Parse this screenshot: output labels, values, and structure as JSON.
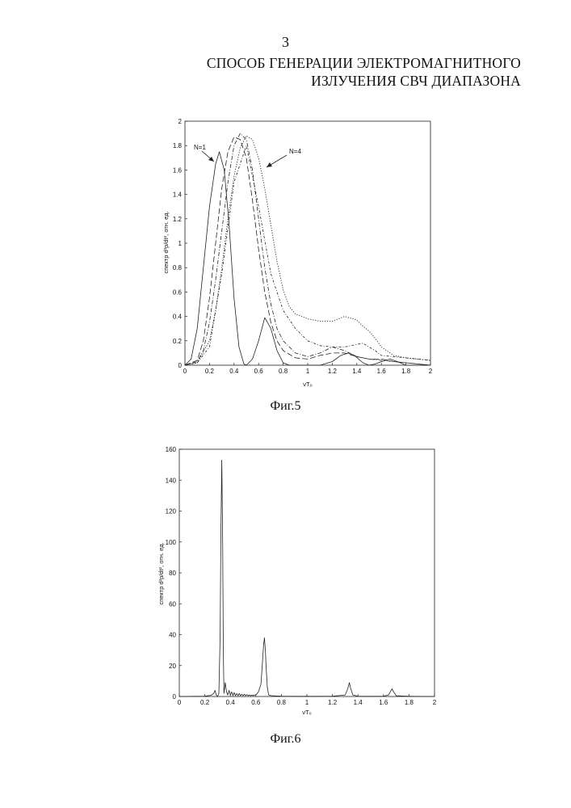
{
  "page": {
    "number": "3",
    "title_line1": "СПОСОБ ГЕНЕРАЦИИ ЭЛЕКТРОМАГНИТНОГО",
    "title_line2": "ИЗЛУЧЕНИЯ СВЧ ДИАПАЗОНА"
  },
  "figures": [
    {
      "caption": "Фиг.5",
      "ylabel": "спектр d²p/dt², отн. ед.",
      "xlabel": "νT₀",
      "annotations": [
        "N=1",
        "N=4"
      ]
    },
    {
      "caption": "Фиг.6",
      "ylabel": "спектр d²p/dt², отн. ед.",
      "xlabel": "νT₀"
    }
  ],
  "chart_data": [
    {
      "type": "line",
      "xlim": [
        0,
        2
      ],
      "ylim": [
        0,
        2
      ],
      "xticks": [
        "0",
        "0.2",
        "0.4",
        "0.6",
        "0.8",
        "1",
        "1.2",
        "1.4",
        "1.6",
        "1.8",
        "2"
      ],
      "yticks": [
        "0",
        "0.2",
        "0.4",
        "0.6",
        "0.8",
        "1",
        "1.2",
        "1.4",
        "1.6",
        "1.8",
        "2"
      ],
      "grid": false,
      "series": [
        {
          "style": "solid",
          "x": [
            0,
            0.05,
            0.1,
            0.15,
            0.2,
            0.25,
            0.28,
            0.32,
            0.36,
            0.4,
            0.44,
            0.48,
            0.5,
            0.55,
            0.6,
            0.65,
            0.7,
            0.75,
            0.8,
            0.85,
            0.9,
            1.0,
            1.1,
            1.2,
            1.27,
            1.33,
            1.38,
            1.45,
            1.5,
            1.55,
            1.6,
            1.67,
            1.73,
            1.8,
            1.85,
            2.0
          ],
          "y": [
            0,
            0.05,
            0.3,
            0.8,
            1.3,
            1.65,
            1.75,
            1.6,
            1.15,
            0.55,
            0.15,
            0.01,
            0.0,
            0.05,
            0.2,
            0.39,
            0.3,
            0.12,
            0.02,
            0.0,
            0.0,
            0.0,
            0.0,
            0.03,
            0.08,
            0.1,
            0.08,
            0.02,
            0.0,
            0.01,
            0.03,
            0.05,
            0.03,
            0.0,
            0.0,
            0.0
          ]
        },
        {
          "style": "long-dash",
          "x": [
            0,
            0.1,
            0.15,
            0.2,
            0.25,
            0.3,
            0.35,
            0.4,
            0.45,
            0.5,
            0.55,
            0.6,
            0.65,
            0.7,
            0.75,
            0.8,
            0.9,
            1.0,
            1.1,
            1.2,
            1.3,
            1.4,
            1.5,
            1.6,
            1.7,
            1.8,
            2.0
          ],
          "y": [
            0,
            0.04,
            0.2,
            0.55,
            1.0,
            1.45,
            1.75,
            1.87,
            1.85,
            1.7,
            1.35,
            0.95,
            0.6,
            0.35,
            0.2,
            0.12,
            0.06,
            0.05,
            0.08,
            0.1,
            0.1,
            0.07,
            0.05,
            0.05,
            0.03,
            0.02,
            0.0
          ]
        },
        {
          "style": "dash-dot",
          "x": [
            0,
            0.1,
            0.15,
            0.2,
            0.25,
            0.3,
            0.35,
            0.4,
            0.45,
            0.5,
            0.55,
            0.6,
            0.65,
            0.7,
            0.75,
            0.8,
            0.9,
            1.0,
            1.1,
            1.2,
            1.3,
            1.4,
            1.5,
            1.6,
            1.7,
            1.8,
            2.0
          ],
          "y": [
            0,
            0.03,
            0.12,
            0.35,
            0.7,
            1.1,
            1.5,
            1.8,
            1.9,
            1.85,
            1.6,
            1.2,
            0.8,
            0.5,
            0.3,
            0.2,
            0.1,
            0.07,
            0.1,
            0.15,
            0.12,
            0.07,
            0.05,
            0.04,
            0.03,
            0.02,
            0.0
          ]
        },
        {
          "style": "dotted",
          "x": [
            0,
            0.1,
            0.2,
            0.25,
            0.3,
            0.35,
            0.4,
            0.45,
            0.5,
            0.55,
            0.6,
            0.65,
            0.7,
            0.75,
            0.8,
            0.85,
            0.9,
            1.0,
            1.1,
            1.2,
            1.3,
            1.4,
            1.45,
            1.5,
            1.55,
            1.6,
            1.7,
            1.8,
            1.9,
            2.0
          ],
          "y": [
            0,
            0.02,
            0.2,
            0.45,
            0.8,
            1.2,
            1.55,
            1.78,
            1.88,
            1.85,
            1.7,
            1.45,
            1.15,
            0.85,
            0.62,
            0.48,
            0.42,
            0.38,
            0.36,
            0.36,
            0.4,
            0.37,
            0.32,
            0.28,
            0.22,
            0.15,
            0.08,
            0.06,
            0.05,
            0.04
          ]
        },
        {
          "style": "dash-dot-2",
          "x": [
            0,
            0.1,
            0.2,
            0.3,
            0.4,
            0.5,
            0.6,
            0.7,
            0.8,
            0.9,
            1.0,
            1.1,
            1.2,
            1.3,
            1.4,
            1.45,
            1.5,
            1.55,
            1.6,
            1.7,
            1.8,
            1.9,
            2.0
          ],
          "y": [
            0,
            0.02,
            0.15,
            0.75,
            1.5,
            1.8,
            1.3,
            0.75,
            0.45,
            0.3,
            0.2,
            0.16,
            0.15,
            0.15,
            0.17,
            0.18,
            0.15,
            0.12,
            0.08,
            0.07,
            0.06,
            0.05,
            0.04
          ]
        }
      ]
    },
    {
      "type": "line",
      "xlim": [
        0,
        2
      ],
      "ylim": [
        0,
        160
      ],
      "xticks": [
        "0",
        "0.2",
        "0.4",
        "0.6",
        "0.8",
        "1",
        "1.2",
        "1.4",
        "1.6",
        "1.8",
        "2"
      ],
      "yticks": [
        "0",
        "20",
        "40",
        "60",
        "80",
        "100",
        "120",
        "140",
        "160"
      ],
      "grid": false,
      "series": [
        {
          "style": "solid",
          "x": [
            0,
            0.2,
            0.25,
            0.27,
            0.28,
            0.29,
            0.3,
            0.31,
            0.32,
            0.325,
            0.333,
            0.34,
            0.345,
            0.35,
            0.36,
            0.37,
            0.38,
            0.39,
            0.4,
            0.41,
            0.42,
            0.43,
            0.44,
            0.45,
            0.46,
            0.47,
            0.48,
            0.49,
            0.5,
            0.51,
            0.52,
            0.53,
            0.54,
            0.55,
            0.56,
            0.57,
            0.58,
            0.59,
            0.6,
            0.62,
            0.64,
            0.65,
            0.66,
            0.667,
            0.675,
            0.68,
            0.69,
            0.7,
            0.72,
            0.8,
            1.0,
            1.2,
            1.3,
            1.32,
            1.333,
            1.34,
            1.36,
            1.4,
            1.5,
            1.6,
            1.64,
            1.66,
            1.667,
            1.68,
            1.7,
            1.8,
            2.0
          ],
          "y": [
            0,
            0.2,
            0.8,
            2,
            4,
            1,
            0,
            2,
            40,
            100,
            153,
            100,
            30,
            2,
            9,
            3,
            1,
            4,
            1,
            3,
            0.5,
            2.5,
            0.5,
            2,
            0.5,
            2,
            0.5,
            1.5,
            0.5,
            1.5,
            0.5,
            1.2,
            0.5,
            1,
            0.5,
            1,
            0.5,
            1,
            1,
            3,
            8,
            20,
            33,
            38,
            30,
            20,
            6,
            1,
            0.5,
            0.2,
            0.1,
            0.2,
            1,
            5,
            9,
            6,
            1,
            0.2,
            0.1,
            0.2,
            1,
            4,
            5,
            3,
            0.5,
            0.1,
            0
          ]
        }
      ]
    }
  ]
}
